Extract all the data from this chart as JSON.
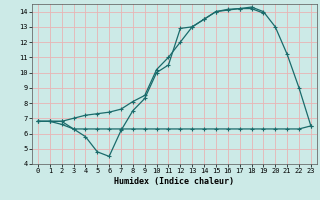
{
  "xlabel": "Humidex (Indice chaleur)",
  "bg_color": "#cceae7",
  "grid_color": "#e8b4b4",
  "line_color": "#1a6b6b",
  "xlim": [
    -0.5,
    23.5
  ],
  "ylim": [
    4,
    14.5
  ],
  "xticks": [
    0,
    1,
    2,
    3,
    4,
    5,
    6,
    7,
    8,
    9,
    10,
    11,
    12,
    13,
    14,
    15,
    16,
    17,
    18,
    19,
    20,
    21,
    22,
    23
  ],
  "yticks": [
    4,
    5,
    6,
    7,
    8,
    9,
    10,
    11,
    12,
    13,
    14
  ],
  "line1_x": [
    0,
    1,
    2,
    3,
    4,
    5,
    6,
    7,
    8,
    9,
    10,
    11,
    12,
    13,
    14,
    15,
    16,
    17,
    18,
    19
  ],
  "line1_y": [
    6.8,
    6.8,
    6.6,
    6.3,
    5.8,
    4.8,
    4.5,
    6.2,
    7.5,
    8.3,
    10.0,
    10.5,
    12.9,
    13.0,
    13.5,
    14.0,
    14.1,
    14.2,
    14.2,
    13.9
  ],
  "line2_x": [
    0,
    1,
    2,
    3,
    4,
    5,
    6,
    7,
    8,
    9,
    10,
    11,
    12,
    13,
    14,
    15,
    16,
    17,
    18,
    19,
    20,
    21,
    22,
    23
  ],
  "line2_y": [
    6.8,
    6.8,
    6.8,
    6.3,
    6.3,
    6.3,
    6.3,
    6.3,
    6.3,
    6.3,
    6.3,
    6.3,
    6.3,
    6.3,
    6.3,
    6.3,
    6.3,
    6.3,
    6.3,
    6.3,
    6.3,
    6.3,
    6.3,
    6.5
  ],
  "line3_x": [
    0,
    1,
    2,
    3,
    4,
    5,
    6,
    7,
    8,
    9,
    10,
    11,
    12,
    13,
    14,
    15,
    16,
    17,
    18,
    19,
    20,
    21,
    22,
    23
  ],
  "line3_y": [
    6.8,
    6.8,
    6.8,
    7.0,
    7.2,
    7.3,
    7.4,
    7.6,
    8.1,
    8.5,
    10.2,
    11.0,
    12.0,
    13.0,
    13.5,
    14.0,
    14.15,
    14.2,
    14.3,
    14.0,
    13.0,
    11.2,
    9.0,
    6.5
  ]
}
